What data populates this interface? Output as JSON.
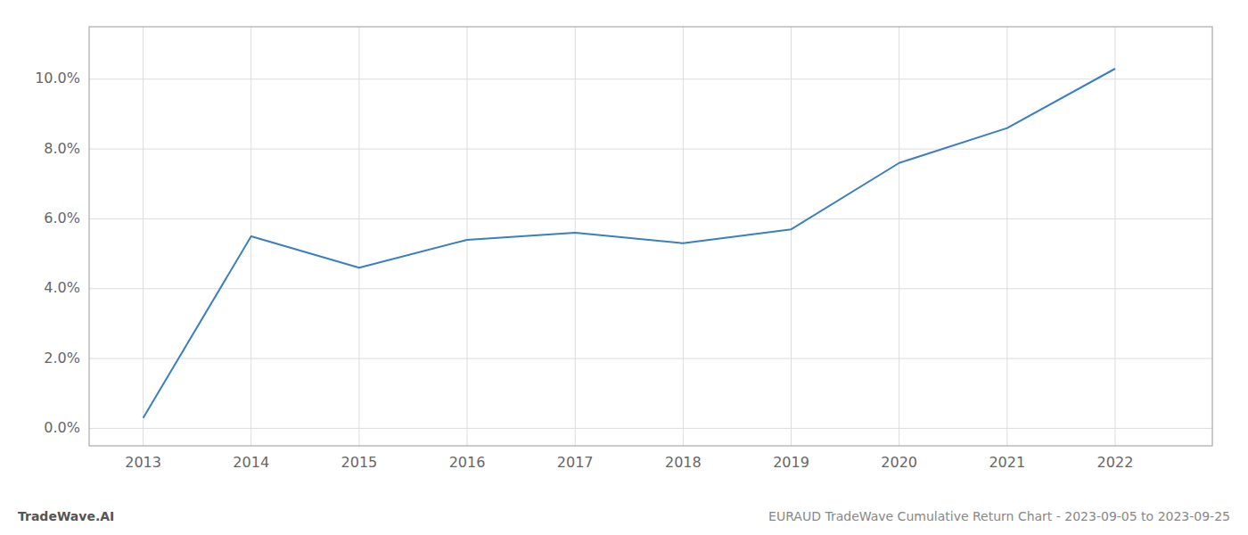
{
  "chart_data": {
    "type": "line",
    "x": [
      2013,
      2014,
      2015,
      2016,
      2017,
      2018,
      2019,
      2020,
      2021,
      2022
    ],
    "values": [
      0.003,
      0.055,
      0.046,
      0.054,
      0.056,
      0.053,
      0.057,
      0.076,
      0.086,
      0.103
    ],
    "color": "#3a7fc1",
    "xlim": [
      2012.5,
      2022.9
    ],
    "ylim": [
      -0.005,
      0.115
    ],
    "xticks": [
      2013,
      2014,
      2015,
      2016,
      2017,
      2018,
      2019,
      2020,
      2021,
      2022
    ],
    "yticks": [
      {
        "value": 0.0,
        "label": "0.0%"
      },
      {
        "value": 0.02,
        "label": "2.0%"
      },
      {
        "value": 0.04,
        "label": "4.0%"
      },
      {
        "value": 0.06,
        "label": "6.0%"
      },
      {
        "value": 0.08,
        "label": "8.0%"
      },
      {
        "value": 0.1,
        "label": "10.0%"
      }
    ],
    "grid": true,
    "annotations": [
      "TradeWave.AI",
      "EURAUD TradeWave Cumulative Return Chart - 2023-09-05 to 2023-09-25"
    ]
  }
}
